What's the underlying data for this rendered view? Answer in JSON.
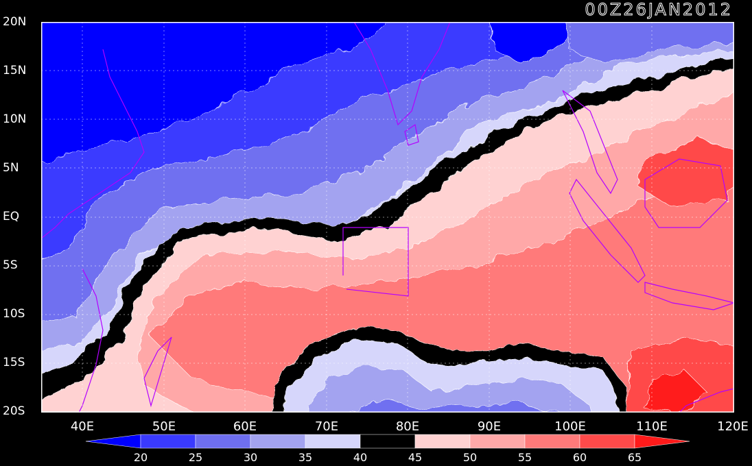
{
  "timestamp": "00Z26JAN2012",
  "lat_labels": [
    "20N",
    "15N",
    "10N",
    "5N",
    "EQ",
    "5S",
    "10S",
    "15S",
    "20S"
  ],
  "lon_labels": [
    "40E",
    "50E",
    "60E",
    "70E",
    "80E",
    "90E",
    "100E",
    "110E",
    "120E"
  ],
  "colorbar": {
    "ticks": [
      "20",
      "25",
      "30",
      "35",
      "40",
      "45",
      "50",
      "55",
      "60",
      "65"
    ],
    "colors": [
      "#0000ff",
      "#3a3aff",
      "#6f6ff0",
      "#a3a3f0",
      "#d6d6fb",
      "#000000",
      "#ffd2d2",
      "#ffa8a8",
      "#ff7a7a",
      "#ff4a4a",
      "#ff1a1a"
    ]
  },
  "map_colors": {
    "c20": "#0000ff",
    "c25": "#3a3aff",
    "c30": "#6f6ff0",
    "c35": "#a3a3f0",
    "c40": "#d6d6fb",
    "c45": "#000000",
    "c50": "#ffd2d2",
    "c55": "#ffa8a8",
    "c60": "#ff7a7a",
    "c65": "#ff4a4a",
    "c70": "#ff1a1a",
    "coast": "#b300ff",
    "frame": "#ffffff"
  }
}
